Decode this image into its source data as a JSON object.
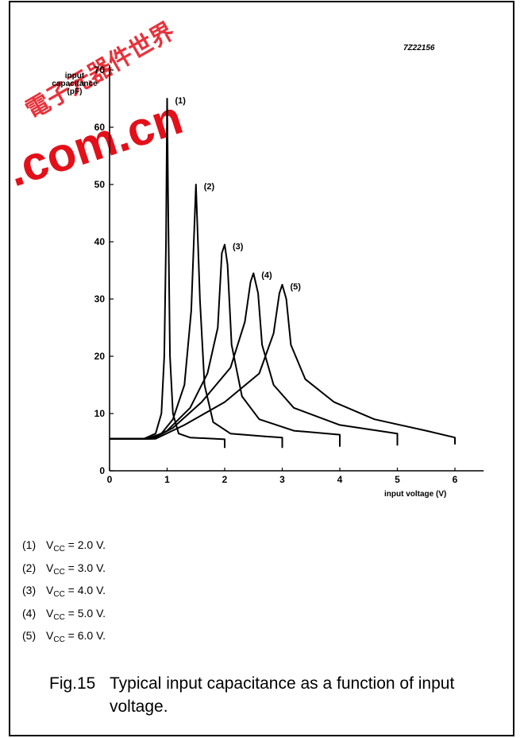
{
  "figure_code": "7Z22156",
  "watermark": {
    "url_text": ".com.cn",
    "cjk_text": "電子元器件世界",
    "color": "#e3101a"
  },
  "chart_data": {
    "type": "line",
    "xlabel": "input voltage (V)",
    "ylabel": [
      "input",
      "capacitance",
      "(pF)"
    ],
    "xlim": [
      0,
      6.5
    ],
    "ylim": [
      0,
      70
    ],
    "x_ticks": [
      "0",
      "1",
      "2",
      "3",
      "4",
      "5",
      "6"
    ],
    "y_ticks": [
      "0",
      "10",
      "20",
      "30",
      "40",
      "50",
      "60",
      "70"
    ],
    "grid": false,
    "series": [
      {
        "name": "(1)",
        "points": [
          [
            0,
            5.6
          ],
          [
            0.6,
            5.6
          ],
          [
            0.8,
            6.5
          ],
          [
            0.9,
            10
          ],
          [
            0.95,
            20
          ],
          [
            0.98,
            40
          ],
          [
            1.0,
            65
          ],
          [
            1.02,
            45
          ],
          [
            1.05,
            20
          ],
          [
            1.1,
            10
          ],
          [
            1.2,
            6.5
          ],
          [
            1.4,
            5.8
          ],
          [
            2.0,
            5.5
          ],
          [
            2.0,
            4.0
          ]
        ]
      },
      {
        "name": "(2)",
        "points": [
          [
            0,
            5.6
          ],
          [
            0.65,
            5.6
          ],
          [
            0.9,
            6.5
          ],
          [
            1.1,
            9
          ],
          [
            1.3,
            15
          ],
          [
            1.42,
            28
          ],
          [
            1.5,
            50
          ],
          [
            1.57,
            30
          ],
          [
            1.65,
            15
          ],
          [
            1.8,
            8.5
          ],
          [
            2.1,
            6.5
          ],
          [
            2.7,
            6.0
          ],
          [
            3.0,
            5.8
          ],
          [
            3.0,
            4.0
          ]
        ]
      },
      {
        "name": "(3)",
        "points": [
          [
            0,
            5.6
          ],
          [
            0.7,
            5.6
          ],
          [
            1.0,
            7
          ],
          [
            1.4,
            11
          ],
          [
            1.7,
            17
          ],
          [
            1.88,
            25
          ],
          [
            1.95,
            38
          ],
          [
            2.0,
            39.5
          ],
          [
            2.05,
            36
          ],
          [
            2.12,
            22
          ],
          [
            2.3,
            13
          ],
          [
            2.6,
            9
          ],
          [
            3.2,
            7
          ],
          [
            4.0,
            6.3
          ],
          [
            4.0,
            4.2
          ]
        ]
      },
      {
        "name": "(4)",
        "points": [
          [
            0,
            5.6
          ],
          [
            0.75,
            5.6
          ],
          [
            1.1,
            7.5
          ],
          [
            1.6,
            12
          ],
          [
            2.1,
            18
          ],
          [
            2.35,
            26
          ],
          [
            2.45,
            33
          ],
          [
            2.5,
            34.5
          ],
          [
            2.58,
            31
          ],
          [
            2.65,
            22
          ],
          [
            2.85,
            15
          ],
          [
            3.2,
            11
          ],
          [
            4.0,
            8
          ],
          [
            5.0,
            6.5
          ],
          [
            5.0,
            4.4
          ]
        ]
      },
      {
        "name": "(5)",
        "points": [
          [
            0,
            5.6
          ],
          [
            0.8,
            5.6
          ],
          [
            1.3,
            8
          ],
          [
            2.0,
            12
          ],
          [
            2.6,
            17
          ],
          [
            2.85,
            24
          ],
          [
            2.95,
            31
          ],
          [
            3.0,
            32.5
          ],
          [
            3.07,
            30
          ],
          [
            3.15,
            22
          ],
          [
            3.4,
            16
          ],
          [
            3.9,
            12
          ],
          [
            4.6,
            9
          ],
          [
            5.5,
            7
          ],
          [
            6.0,
            5.8
          ],
          [
            6.0,
            4.6
          ]
        ]
      }
    ],
    "curve_labels": [
      "(1)",
      "(2)",
      "(3)",
      "(4)",
      "(5)"
    ]
  },
  "notes": [
    {
      "num": "(1)",
      "pre": "V",
      "sub": "CC",
      "post": " = 2.0 V."
    },
    {
      "num": "(2)",
      "pre": "V",
      "sub": "CC",
      "post": " = 3.0 V."
    },
    {
      "num": "(3)",
      "pre": "V",
      "sub": "CC",
      "post": " = 4.0 V."
    },
    {
      "num": "(4)",
      "pre": "V",
      "sub": "CC",
      "post": " = 5.0 V."
    },
    {
      "num": "(5)",
      "pre": "V",
      "sub": "CC",
      "post": " = 6.0 V."
    }
  ],
  "caption": {
    "fig": "Fig.15",
    "text": "Typical input capacitance as a function of input voltage."
  }
}
